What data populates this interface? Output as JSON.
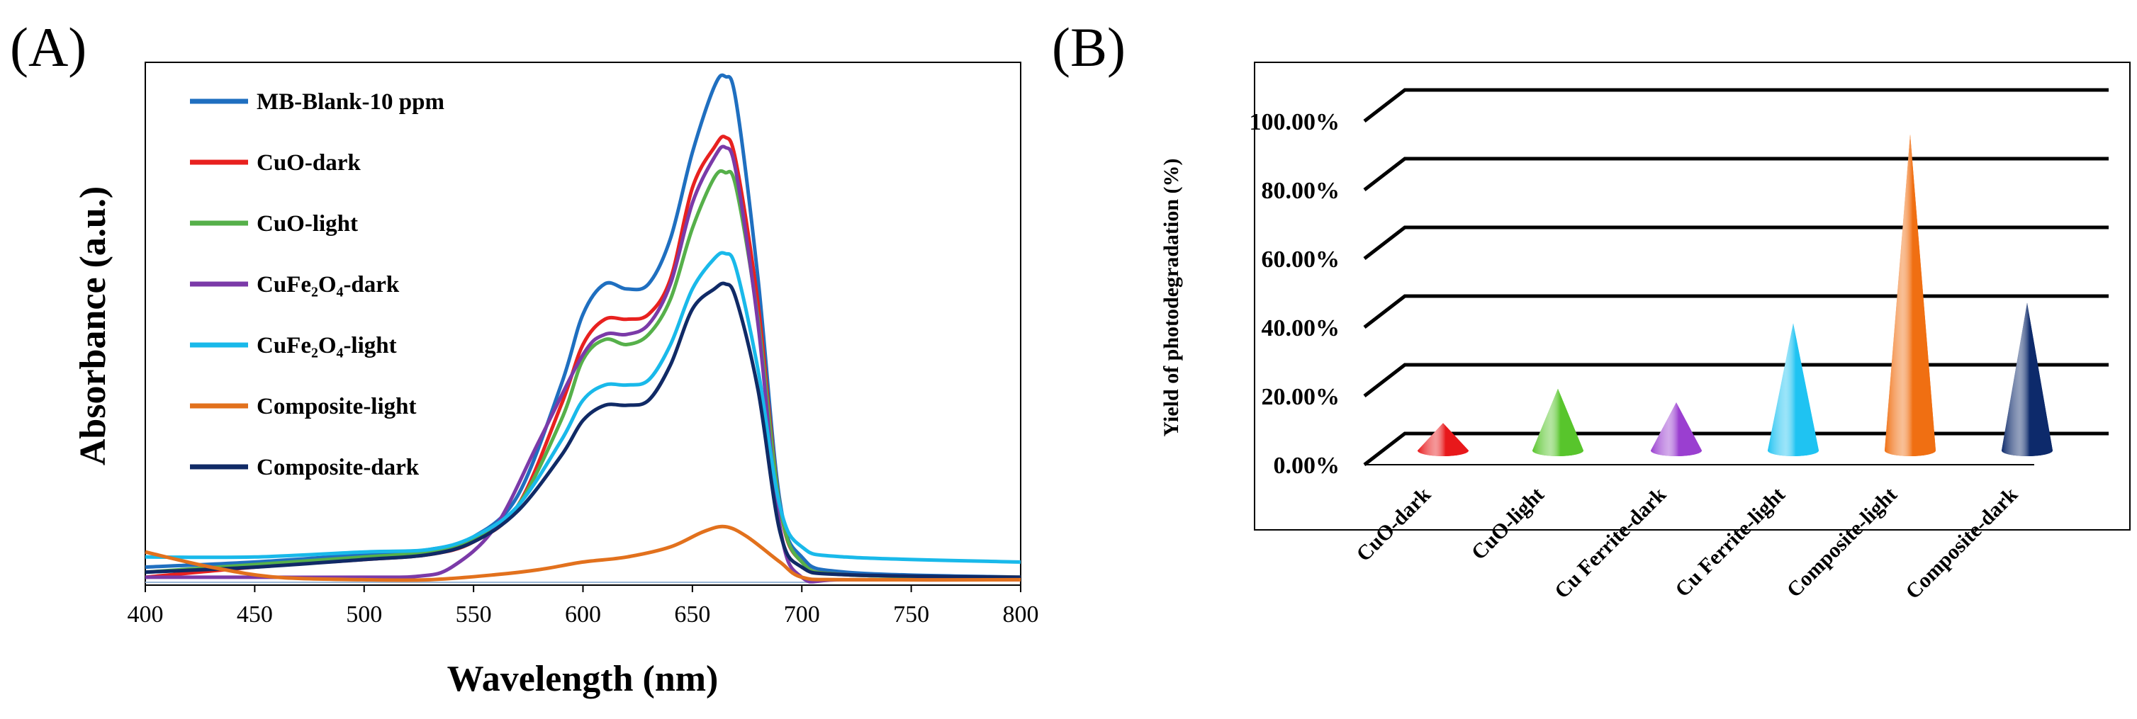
{
  "chart_data": [
    {
      "panel": "(A)",
      "type": "line",
      "xlabel": "Wavelength (nm)",
      "ylabel": "Absorbance (a.u.)",
      "xlim": [
        400,
        800
      ],
      "ylim": [
        0,
        1.0
      ],
      "xticks": [
        "400",
        "450",
        "500",
        "550",
        "600",
        "650",
        "700",
        "750",
        "800"
      ],
      "legend": "top-left",
      "series": [
        {
          "name": "MB-Blank-10 ppm",
          "color": "#1f6fc0",
          "points": [
            [
              400,
              0.03
            ],
            [
              450,
              0.04
            ],
            [
              500,
              0.055
            ],
            [
              530,
              0.065
            ],
            [
              550,
              0.09
            ],
            [
              570,
              0.17
            ],
            [
              590,
              0.39
            ],
            [
              600,
              0.53
            ],
            [
              610,
              0.59
            ],
            [
              620,
              0.58
            ],
            [
              630,
              0.59
            ],
            [
              640,
              0.68
            ],
            [
              650,
              0.85
            ],
            [
              660,
              0.98
            ],
            [
              665,
              1.0
            ],
            [
              670,
              0.95
            ],
            [
              680,
              0.6
            ],
            [
              690,
              0.16
            ],
            [
              700,
              0.05
            ],
            [
              720,
              0.02
            ],
            [
              800,
              0.01
            ]
          ]
        },
        {
          "name": "CuO-dark",
          "color": "#e8211f",
          "points": [
            [
              400,
              0.01
            ],
            [
              450,
              0.03
            ],
            [
              500,
              0.045
            ],
            [
              530,
              0.055
            ],
            [
              550,
              0.08
            ],
            [
              570,
              0.15
            ],
            [
              590,
              0.35
            ],
            [
              600,
              0.47
            ],
            [
              610,
              0.52
            ],
            [
              620,
              0.52
            ],
            [
              630,
              0.53
            ],
            [
              640,
              0.6
            ],
            [
              650,
              0.78
            ],
            [
              660,
              0.86
            ],
            [
              665,
              0.88
            ],
            [
              670,
              0.83
            ],
            [
              680,
              0.55
            ],
            [
              690,
              0.15
            ],
            [
              700,
              0.04
            ],
            [
              720,
              0.015
            ],
            [
              800,
              0.01
            ]
          ]
        },
        {
          "name": "CuO-light",
          "color": "#56b04a",
          "points": [
            [
              400,
              0.02
            ],
            [
              450,
              0.035
            ],
            [
              500,
              0.05
            ],
            [
              530,
              0.06
            ],
            [
              550,
              0.085
            ],
            [
              570,
              0.15
            ],
            [
              590,
              0.32
            ],
            [
              600,
              0.44
            ],
            [
              610,
              0.48
            ],
            [
              620,
              0.47
            ],
            [
              630,
              0.49
            ],
            [
              640,
              0.56
            ],
            [
              650,
              0.7
            ],
            [
              660,
              0.8
            ],
            [
              665,
              0.81
            ],
            [
              670,
              0.78
            ],
            [
              680,
              0.52
            ],
            [
              690,
              0.15
            ],
            [
              700,
              0.04
            ],
            [
              720,
              0.015
            ],
            [
              800,
              0.01
            ]
          ]
        },
        {
          "name": "CuFe₂O₄-dark",
          "color": "#7b3aa8",
          "points": [
            [
              400,
              0.01
            ],
            [
              450,
              0.01
            ],
            [
              500,
              0.01
            ],
            [
              525,
              0.012
            ],
            [
              540,
              0.03
            ],
            [
              560,
              0.11
            ],
            [
              580,
              0.28
            ],
            [
              600,
              0.45
            ],
            [
              610,
              0.49
            ],
            [
              620,
              0.49
            ],
            [
              630,
              0.51
            ],
            [
              640,
              0.59
            ],
            [
              650,
              0.75
            ],
            [
              660,
              0.84
            ],
            [
              665,
              0.86
            ],
            [
              670,
              0.81
            ],
            [
              680,
              0.51
            ],
            [
              690,
              0.11
            ],
            [
              700,
              0.01
            ],
            [
              720,
              0.005
            ],
            [
              800,
              0.005
            ]
          ]
        },
        {
          "name": "CuFe₂O₄-light",
          "color": "#19b9ea",
          "points": [
            [
              400,
              0.05
            ],
            [
              450,
              0.05
            ],
            [
              500,
              0.06
            ],
            [
              530,
              0.065
            ],
            [
              550,
              0.09
            ],
            [
              570,
              0.15
            ],
            [
              590,
              0.28
            ],
            [
              600,
              0.36
            ],
            [
              610,
              0.39
            ],
            [
              620,
              0.39
            ],
            [
              630,
              0.4
            ],
            [
              640,
              0.47
            ],
            [
              650,
              0.58
            ],
            [
              660,
              0.64
            ],
            [
              665,
              0.65
            ],
            [
              670,
              0.62
            ],
            [
              680,
              0.42
            ],
            [
              690,
              0.15
            ],
            [
              700,
              0.07
            ],
            [
              720,
              0.05
            ],
            [
              800,
              0.04
            ]
          ]
        },
        {
          "name": "Composite-light",
          "color": "#e2711d",
          "points": [
            [
              400,
              0.06
            ],
            [
              430,
              0.03
            ],
            [
              460,
              0.01
            ],
            [
              500,
              0.005
            ],
            [
              530,
              0.005
            ],
            [
              560,
              0.015
            ],
            [
              580,
              0.025
            ],
            [
              600,
              0.04
            ],
            [
              620,
              0.05
            ],
            [
              640,
              0.07
            ],
            [
              655,
              0.1
            ],
            [
              665,
              0.11
            ],
            [
              675,
              0.09
            ],
            [
              690,
              0.04
            ],
            [
              700,
              0.01
            ],
            [
              720,
              0.005
            ],
            [
              800,
              0.005
            ]
          ]
        },
        {
          "name": "Composite-dark",
          "color": "#102a66",
          "points": [
            [
              400,
              0.02
            ],
            [
              450,
              0.03
            ],
            [
              500,
              0.045
            ],
            [
              530,
              0.055
            ],
            [
              550,
              0.08
            ],
            [
              570,
              0.14
            ],
            [
              590,
              0.25
            ],
            [
              600,
              0.32
            ],
            [
              610,
              0.35
            ],
            [
              620,
              0.35
            ],
            [
              630,
              0.36
            ],
            [
              640,
              0.43
            ],
            [
              650,
              0.54
            ],
            [
              660,
              0.58
            ],
            [
              665,
              0.59
            ],
            [
              670,
              0.56
            ],
            [
              680,
              0.38
            ],
            [
              690,
              0.1
            ],
            [
              700,
              0.03
            ],
            [
              720,
              0.015
            ],
            [
              800,
              0.01
            ]
          ]
        }
      ]
    },
    {
      "panel": "(B)",
      "type": "bar",
      "style": "3d-cone",
      "ylabel": "Yield of photodegradation (%)",
      "ylim": [
        0,
        100
      ],
      "yticks": [
        "0.00%",
        "20.00%",
        "40.00%",
        "60.00%",
        "80.00%",
        "100.00%"
      ],
      "categories": [
        "CuO-dark",
        "CuO-light",
        "Cu Ferrite-dark",
        "Cu Ferrite-light",
        "Composite-light",
        "Composite-dark"
      ],
      "values": [
        8,
        18,
        14,
        37,
        92,
        43
      ],
      "colors": [
        "#e8181b",
        "#58c52c",
        "#9a3fd0",
        "#1fc3f2",
        "#f06f12",
        "#0d2a6b"
      ]
    }
  ]
}
